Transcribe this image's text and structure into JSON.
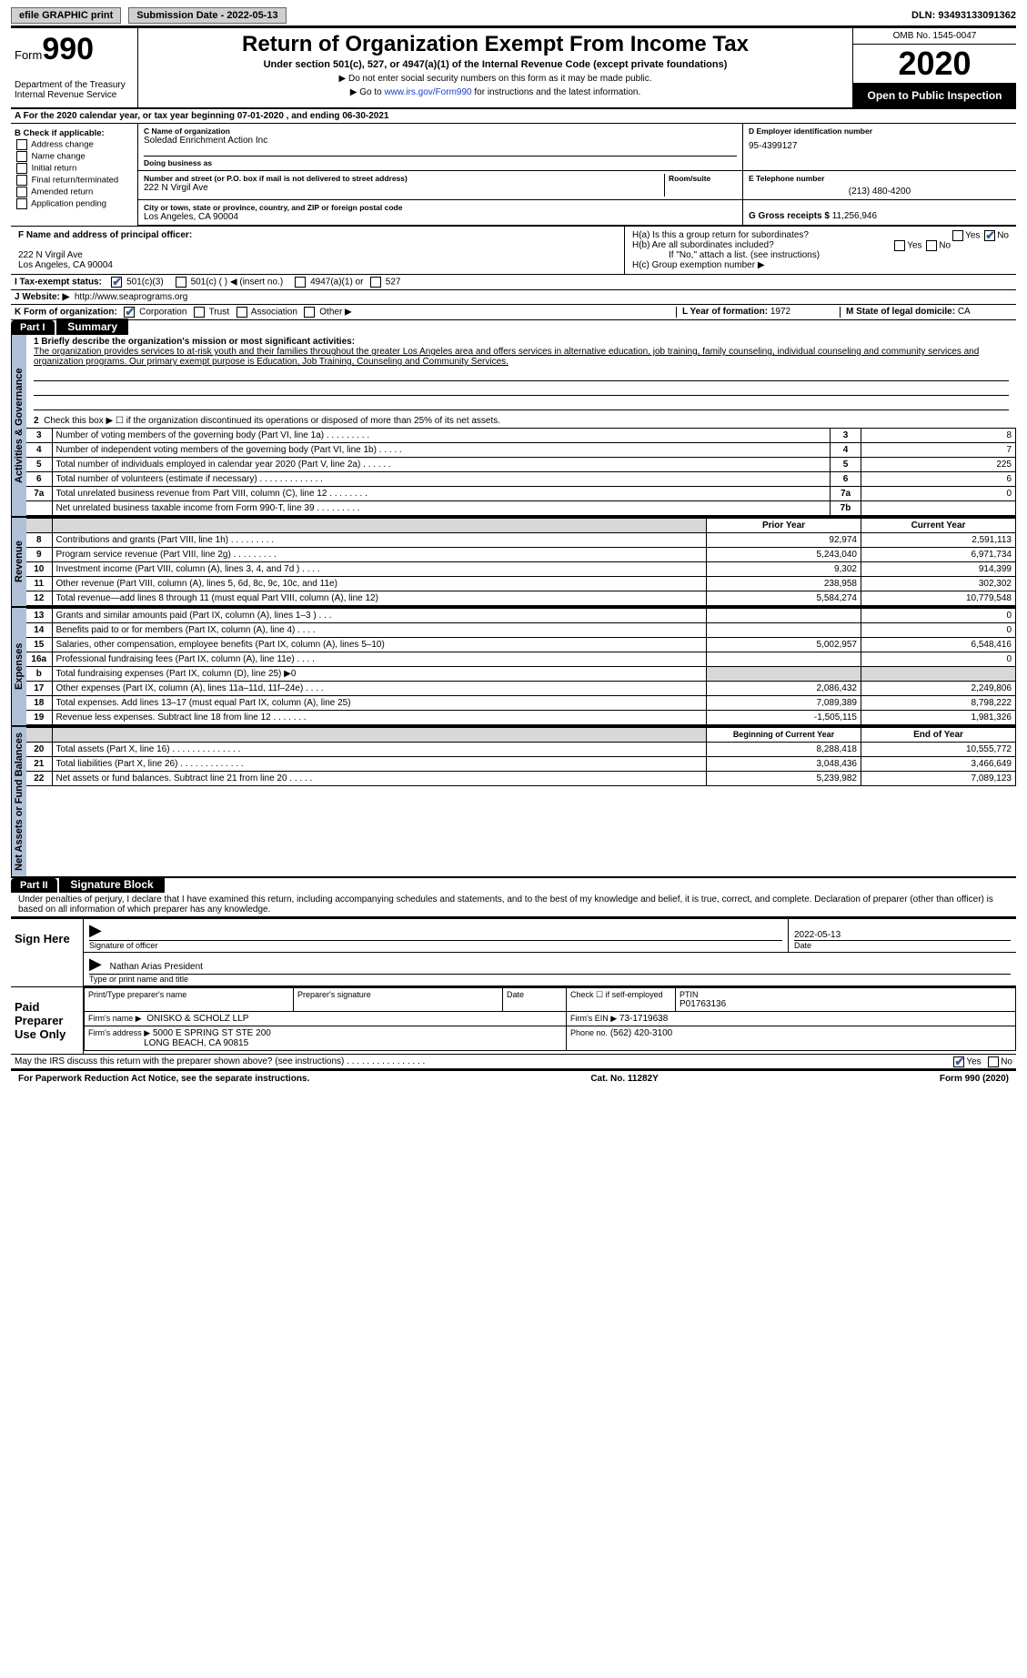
{
  "topbar": {
    "btn1": "efile GRAPHIC print",
    "sub": "Submission Date - 2022-05-13",
    "dln": "DLN: 93493133091362"
  },
  "header": {
    "form": "Form",
    "num": "990",
    "dept": "Department of the Treasury Internal Revenue Service",
    "title": "Return of Organization Exempt From Income Tax",
    "subtitle": "Under section 501(c), 527, or 4947(a)(1) of the Internal Revenue Code (except private foundations)",
    "note1": "▶ Do not enter social security numbers on this form as it may be made public.",
    "note2_pre": "▶ Go to ",
    "note2_link": "www.irs.gov/Form990",
    "note2_post": " for instructions and the latest information.",
    "omb": "OMB No. 1545-0047",
    "year": "2020",
    "open": "Open to Public Inspection"
  },
  "rowA": "A For the 2020 calendar year, or tax year beginning 07-01-2020   , and ending 06-30-2021",
  "B": {
    "hdr": "B Check if applicable:",
    "items": [
      "Address change",
      "Name change",
      "Initial return",
      "Final return/terminated",
      "Amended return",
      "Application pending"
    ]
  },
  "C": {
    "name_lbl": "C Name of organization",
    "name": "Soledad Enrichment Action Inc",
    "dba_lbl": "Doing business as",
    "addr_lbl": "Number and street (or P.O. box if mail is not delivered to street address)",
    "addr": "222 N Virgil Ave",
    "room_lbl": "Room/suite",
    "city_lbl": "City or town, state or province, country, and ZIP or foreign postal code",
    "city": "Los Angeles, CA  90004"
  },
  "D": {
    "ein_lbl": "D Employer identification number",
    "ein": "95-4399127",
    "tel_lbl": "E Telephone number",
    "tel": "(213) 480-4200",
    "gross_lbl": "G Gross receipts $",
    "gross": "11,256,946"
  },
  "F": {
    "lbl": "F Name and address of principal officer:",
    "addr1": "222 N Virgil Ave",
    "addr2": "Los Angeles, CA  90004"
  },
  "H": {
    "a": "H(a)  Is this a group return for subordinates?",
    "b": "H(b)  Are all subordinates included?",
    "note": "If \"No,\" attach a list. (see instructions)",
    "c": "H(c)  Group exemption number ▶"
  },
  "I": {
    "lbl": "I   Tax-exempt status:",
    "o1": "501(c)(3)",
    "o2": "501(c) (  ) ◀ (insert no.)",
    "o3": "4947(a)(1) or",
    "o4": "527"
  },
  "J": {
    "lbl": "J  Website: ▶",
    "url": "http://www.seaprograms.org"
  },
  "K": {
    "lbl": "K Form of organization:",
    "o1": "Corporation",
    "o2": "Trust",
    "o3": "Association",
    "o4": "Other ▶"
  },
  "L": {
    "lbl": "L Year of formation:",
    "val": "1972"
  },
  "M": {
    "lbl": "M State of legal domicile:",
    "val": "CA"
  },
  "partI": {
    "num": "Part I",
    "title": "Summary"
  },
  "mission": {
    "q": "1  Briefly describe the organization's mission or most significant activities:",
    "text": "The organization provides services to at-risk youth and their families throughout the greater Los Angeles area and offers services in alternative education, job training, family counseling, individual counseling and community services and organization programs. Our primary exempt purpose is Education, Job Training, Counseling and Community Services."
  },
  "gov": {
    "l2": "Check this box ▶ ☐ if the organization discontinued its operations or disposed of more than 25% of its net assets.",
    "rows": [
      {
        "n": "3",
        "t": "Number of voting members of the governing body (Part VI, line 1a)   .    .    .    .    .    .    .    .    .",
        "b": "3",
        "v": "8"
      },
      {
        "n": "4",
        "t": "Number of independent voting members of the governing body (Part VI, line 1b)   .    .    .    .    .",
        "b": "4",
        "v": "7"
      },
      {
        "n": "5",
        "t": "Total number of individuals employed in calendar year 2020 (Part V, line 2a)   .    .    .    .    .    .",
        "b": "5",
        "v": "225"
      },
      {
        "n": "6",
        "t": "Total number of volunteers (estimate if necessary)   .    .    .    .    .    .    .    .    .    .    .    .    .",
        "b": "6",
        "v": "6"
      },
      {
        "n": "7a",
        "t": "Total unrelated business revenue from Part VIII, column (C), line 12   .    .    .    .    .    .    .    .",
        "b": "7a",
        "v": "0"
      },
      {
        "n": "",
        "t": "Net unrelated business taxable income from Form 990-T, line 39   .    .    .    .    .    .    .    .    .",
        "b": "7b",
        "v": ""
      }
    ]
  },
  "rev": {
    "hdr": {
      "py": "Prior Year",
      "cy": "Current Year"
    },
    "rows": [
      {
        "n": "8",
        "t": "Contributions and grants (Part VIII, line 1h)   .    .    .    .    .    .    .    .    .",
        "py": "92,974",
        "cy": "2,591,113"
      },
      {
        "n": "9",
        "t": "Program service revenue (Part VIII, line 2g)   .    .    .    .    .    .    .    .    .",
        "py": "5,243,040",
        "cy": "6,971,734"
      },
      {
        "n": "10",
        "t": "Investment income (Part VIII, column (A), lines 3, 4, and 7d )   .    .    .    .",
        "py": "9,302",
        "cy": "914,399"
      },
      {
        "n": "11",
        "t": "Other revenue (Part VIII, column (A), lines 5, 6d, 8c, 9c, 10c, and 11e)",
        "py": "238,958",
        "cy": "302,302"
      },
      {
        "n": "12",
        "t": "Total revenue—add lines 8 through 11 (must equal Part VIII, column (A), line 12)",
        "py": "5,584,274",
        "cy": "10,779,548"
      }
    ]
  },
  "exp": {
    "rows": [
      {
        "n": "13",
        "t": "Grants and similar amounts paid (Part IX, column (A), lines 1–3 )   .    .    .",
        "py": "",
        "cy": "0"
      },
      {
        "n": "14",
        "t": "Benefits paid to or for members (Part IX, column (A), line 4)   .    .    .    .",
        "py": "",
        "cy": "0"
      },
      {
        "n": "15",
        "t": "Salaries, other compensation, employee benefits (Part IX, column (A), lines 5–10)",
        "py": "5,002,957",
        "cy": "6,548,416"
      },
      {
        "n": "16a",
        "t": "Professional fundraising fees (Part IX, column (A), line 11e)   .    .    .    .",
        "py": "",
        "cy": "0"
      },
      {
        "n": "b",
        "t": "Total fundraising expenses (Part IX, column (D), line 25) ▶0",
        "py": "shade",
        "cy": "shade"
      },
      {
        "n": "17",
        "t": "Other expenses (Part IX, column (A), lines 11a–11d, 11f–24e)   .    .    .    .",
        "py": "2,086,432",
        "cy": "2,249,806"
      },
      {
        "n": "18",
        "t": "Total expenses. Add lines 13–17 (must equal Part IX, column (A), line 25)",
        "py": "7,089,389",
        "cy": "8,798,222"
      },
      {
        "n": "19",
        "t": "Revenue less expenses. Subtract line 18 from line 12   .    .    .    .    .    .    .",
        "py": "-1,505,115",
        "cy": "1,981,326"
      }
    ]
  },
  "net": {
    "hdr": {
      "py": "Beginning of Current Year",
      "cy": "End of Year"
    },
    "rows": [
      {
        "n": "20",
        "t": "Total assets (Part X, line 16)   .    .    .    .    .    .    .    .    .    .    .    .    .    .",
        "py": "8,288,418",
        "cy": "10,555,772"
      },
      {
        "n": "21",
        "t": "Total liabilities (Part X, line 26)   .    .    .    .    .    .    .    .    .    .    .    .    .",
        "py": "3,048,436",
        "cy": "3,466,649"
      },
      {
        "n": "22",
        "t": "Net assets or fund balances. Subtract line 21 from line 20   .    .    .    .    .",
        "py": "5,239,982",
        "cy": "7,089,123"
      }
    ]
  },
  "sidelabels": {
    "gov": "Activities & Governance",
    "rev": "Revenue",
    "exp": "Expenses",
    "net": "Net Assets or Fund Balances"
  },
  "partII": {
    "num": "Part II",
    "title": "Signature Block"
  },
  "penalties": "Under penalties of perjury, I declare that I have examined this return, including accompanying schedules and statements, and to the best of my knowledge and belief, it is true, correct, and complete. Declaration of preparer (other than officer) is based on all information of which preparer has any knowledge.",
  "sign": {
    "here": "Sign Here",
    "sig_lbl": "Signature of officer",
    "date": "2022-05-13",
    "date_lbl": "Date",
    "name": "Nathan Arias  President",
    "name_lbl": "Type or print name and title"
  },
  "paid": {
    "here": "Paid Preparer Use Only",
    "pn_lbl": "Print/Type preparer's name",
    "ps_lbl": "Preparer's signature",
    "d_lbl": "Date",
    "se_lbl": "Check ☐ if self-employed",
    "ptin_lbl": "PTIN",
    "ptin": "P01763136",
    "fn_lbl": "Firm's name   ▶",
    "fn": "ONISKO & SCHOLZ LLP",
    "fein_lbl": "Firm's EIN ▶",
    "fein": "73-1719638",
    "fa_lbl": "Firm's address ▶",
    "fa1": "5000 E SPRING ST STE 200",
    "fa2": "LONG BEACH, CA  90815",
    "ph_lbl": "Phone no.",
    "ph": "(562) 420-3100"
  },
  "discuss": "May the IRS discuss this return with the preparer shown above? (see instructions)   .    .    .    .    .    .    .    .    .    .    .    .    .    .    .    .",
  "footer": {
    "l": "For Paperwork Reduction Act Notice, see the separate instructions.",
    "m": "Cat. No. 11282Y",
    "r": "Form 990 (2020)"
  },
  "yn": {
    "yes": "Yes",
    "no": "No"
  }
}
